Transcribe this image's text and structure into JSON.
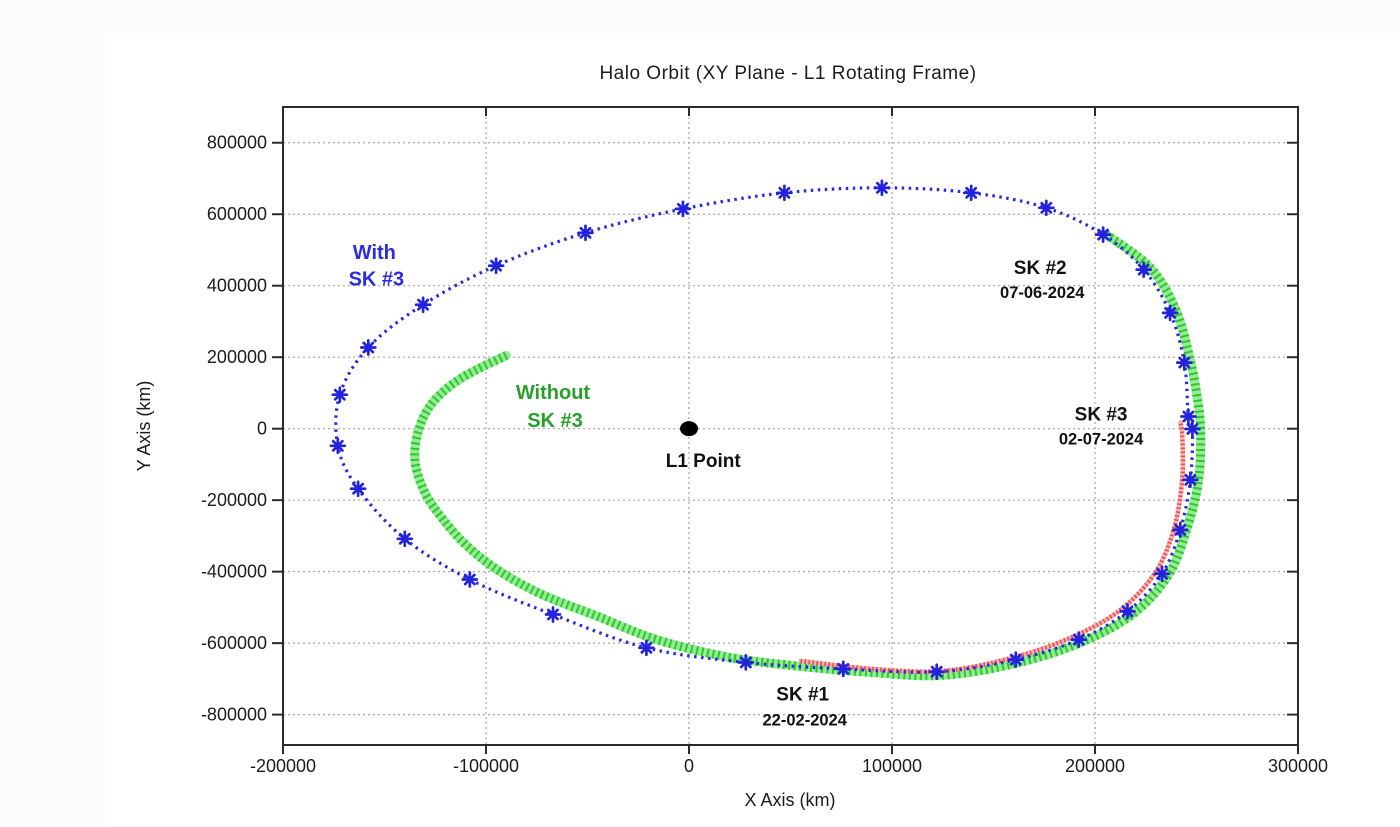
{
  "page": {
    "background": "#fcfcfc",
    "panel_background": "#ffffff"
  },
  "chart_data": {
    "type": "line",
    "title": "Halo Orbit (XY Plane - L1 Rotating Frame)",
    "xlabel": "X Axis (km)",
    "ylabel": "Y Axis (km)",
    "xlim": [
      -200000,
      300000
    ],
    "ylim": [
      -885000,
      900000
    ],
    "grid": true,
    "legend_position": "none (inline text labels)",
    "x_ticks": {
      "values": [
        -200000,
        -100000,
        0,
        100000,
        200000,
        300000
      ],
      "labels": [
        "-200000",
        "-100000",
        "0",
        "100000",
        "200000",
        "300000"
      ]
    },
    "y_ticks": {
      "values": [
        800000,
        600000,
        400000,
        200000,
        0,
        -200000,
        -400000,
        -600000,
        -800000
      ],
      "labels": [
        "800000",
        "600000",
        "400000",
        "200000",
        "0",
        "-200000",
        "-400000",
        "-600000",
        "-800000"
      ]
    },
    "frame_colors": {
      "grid": "#a6a6a6",
      "axis": "#2b2b2b",
      "tick_text": "#1c1c1c"
    },
    "series": [
      {
        "id": "with-sk3",
        "name": "With SK #3",
        "color": "#2a2ae0",
        "marker": "star",
        "line_style": "dotted",
        "closed": true,
        "points_km": [
          [
            -172000,
            95000
          ],
          [
            -173000,
            -48000
          ],
          [
            -163000,
            -168000
          ],
          [
            -140000,
            -308000
          ],
          [
            -108000,
            -422000
          ],
          [
            -67000,
            -520000
          ],
          [
            -21000,
            -613000
          ],
          [
            28000,
            -654000
          ],
          [
            76000,
            -672000
          ],
          [
            122000,
            -680000
          ],
          [
            161000,
            -646000
          ],
          [
            192000,
            -590000
          ],
          [
            216000,
            -511000
          ],
          [
            233000,
            -406000
          ],
          [
            242000,
            -283000
          ],
          [
            247000,
            -143000
          ],
          [
            248000,
            -1000
          ],
          [
            246000,
            34000
          ],
          [
            244000,
            185000
          ],
          [
            237000,
            324000
          ],
          [
            224000,
            445000
          ],
          [
            204000,
            543000
          ],
          [
            176000,
            618000
          ],
          [
            139000,
            660000
          ],
          [
            95000,
            674000
          ],
          [
            47000,
            660000
          ],
          [
            -3000,
            615000
          ],
          [
            -51000,
            548000
          ],
          [
            -95000,
            456000
          ],
          [
            -131000,
            347000
          ],
          [
            -158000,
            227000
          ]
        ]
      },
      {
        "id": "without-sk3",
        "name": "Without SK #3",
        "color": "#2dc72d",
        "band_color": "#8aea8a",
        "marker": "hatch",
        "line_style": "hatched-band",
        "closed": false,
        "points_km": [
          [
            -90000,
            205000
          ],
          [
            -112000,
            142000
          ],
          [
            -126000,
            75000
          ],
          [
            -133000,
            0
          ],
          [
            -135000,
            -90000
          ],
          [
            -130000,
            -180000
          ],
          [
            -121000,
            -255000
          ],
          [
            -109000,
            -330000
          ],
          [
            -93000,
            -400000
          ],
          [
            -72000,
            -465000
          ],
          [
            -45000,
            -525000
          ],
          [
            -16000,
            -590000
          ],
          [
            20000,
            -640000
          ],
          [
            55000,
            -665000
          ],
          [
            90000,
            -682000
          ],
          [
            125000,
            -690000
          ],
          [
            162000,
            -655000
          ],
          [
            194000,
            -596000
          ],
          [
            219000,
            -517000
          ],
          [
            236000,
            -411000
          ],
          [
            245000,
            -286000
          ],
          [
            251000,
            -145000
          ],
          [
            252000,
            0
          ],
          [
            250000,
            100000
          ],
          [
            247000,
            190000
          ],
          [
            240000,
            330000
          ],
          [
            227000,
            452000
          ],
          [
            205000,
            545000
          ]
        ]
      },
      {
        "id": "red-deviation",
        "color": "#e44b4b",
        "band_color": "#f5aaaa",
        "marker": "cross",
        "line_style": "hatched-band",
        "closed": false,
        "points_km": [
          [
            55000,
            -650000
          ],
          [
            90000,
            -672000
          ],
          [
            125000,
            -678000
          ],
          [
            160000,
            -640000
          ],
          [
            190000,
            -580000
          ],
          [
            213000,
            -505000
          ],
          [
            230000,
            -400000
          ],
          [
            239000,
            -278000
          ],
          [
            243000,
            -140000
          ],
          [
            243000,
            -20000
          ],
          [
            242000,
            18000
          ]
        ]
      }
    ],
    "l1_point": {
      "label": "L1 Point",
      "x_km": 0,
      "y_km": 0,
      "color": "#000000"
    },
    "annotations": [
      {
        "id": "with-sk3",
        "color": "#2b2be0",
        "lines": [
          {
            "text": "With",
            "x_km": -155000,
            "y_km": 492000
          },
          {
            "text": "SK #3",
            "x_km": -154000,
            "y_km": 417000
          }
        ]
      },
      {
        "id": "without-sk3",
        "color": "#27a02a",
        "lines": [
          {
            "text": "Without",
            "x_km": -67000,
            "y_km": 100000
          },
          {
            "text": "SK #3",
            "x_km": -66000,
            "y_km": 22000
          }
        ]
      },
      {
        "id": "sk2",
        "color": "#111111",
        "lines": [
          {
            "text": "SK #2",
            "x_km": 173000,
            "y_km": 450000
          },
          {
            "text": "07-06-2024",
            "x_km": 174000,
            "y_km": 383000
          }
        ]
      },
      {
        "id": "sk3",
        "color": "#111111",
        "lines": [
          {
            "text": "SK #3",
            "x_km": 203000,
            "y_km": 39000
          },
          {
            "text": "02-07-2024",
            "x_km": 203000,
            "y_km": -28000
          }
        ]
      },
      {
        "id": "sk1",
        "color": "#111111",
        "lines": [
          {
            "text": "SK #1",
            "x_km": 56000,
            "y_km": -744000
          },
          {
            "text": "22-02-2024",
            "x_km": 57000,
            "y_km": -814000
          }
        ]
      },
      {
        "id": "l1-label",
        "color": "#111111",
        "lines": [
          {
            "text": "L1 Point",
            "x_km": 7000,
            "y_km": -90000
          }
        ]
      }
    ]
  }
}
